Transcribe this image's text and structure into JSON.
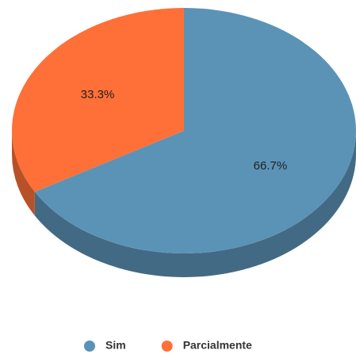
{
  "chart_data": {
    "type": "pie",
    "categories": [
      "Sim",
      "Parcialmente"
    ],
    "values": [
      66.7,
      33.3
    ],
    "value_labels": [
      "66.7%",
      "33.3%"
    ],
    "colors": [
      "#5b93b7",
      "#fe7037"
    ],
    "legend": "bottom"
  }
}
